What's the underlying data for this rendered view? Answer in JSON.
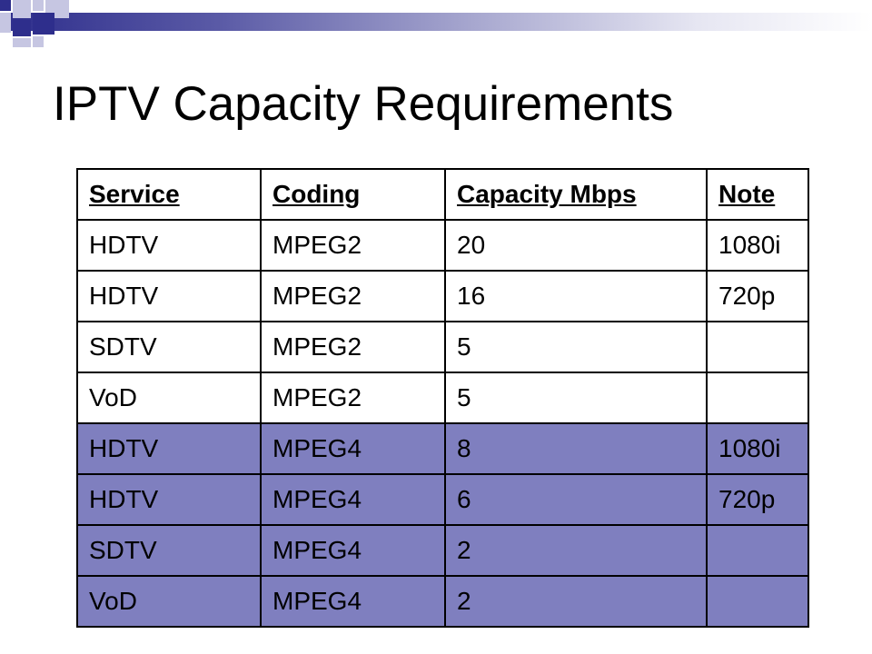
{
  "slide": {
    "title": "IPTV Capacity Requirements"
  },
  "colors": {
    "accent": "#2e2e8c",
    "highlight_row": "#7f7fbf",
    "deco_light": "#c6c6e2"
  },
  "table": {
    "headers": [
      "Service",
      "Coding",
      "Capacity Mbps",
      "Note"
    ],
    "rows": [
      {
        "service": "HDTV",
        "coding": "MPEG2",
        "capacity": "20",
        "note": "1080i",
        "highlighted": false
      },
      {
        "service": "HDTV",
        "coding": "MPEG2",
        "capacity": "16",
        "note": "720p",
        "highlighted": false
      },
      {
        "service": "SDTV",
        "coding": "MPEG2",
        "capacity": "5",
        "note": "",
        "highlighted": false
      },
      {
        "service": "VoD",
        "coding": "MPEG2",
        "capacity": "5",
        "note": "",
        "highlighted": false
      },
      {
        "service": "HDTV",
        "coding": "MPEG4",
        "capacity": "8",
        "note": "1080i",
        "highlighted": true
      },
      {
        "service": "HDTV",
        "coding": "MPEG4",
        "capacity": "6",
        "note": "720p",
        "highlighted": true
      },
      {
        "service": "SDTV",
        "coding": "MPEG4",
        "capacity": "2",
        "note": "",
        "highlighted": true
      },
      {
        "service": "VoD",
        "coding": "MPEG4",
        "capacity": "2",
        "note": "",
        "highlighted": true
      }
    ]
  }
}
